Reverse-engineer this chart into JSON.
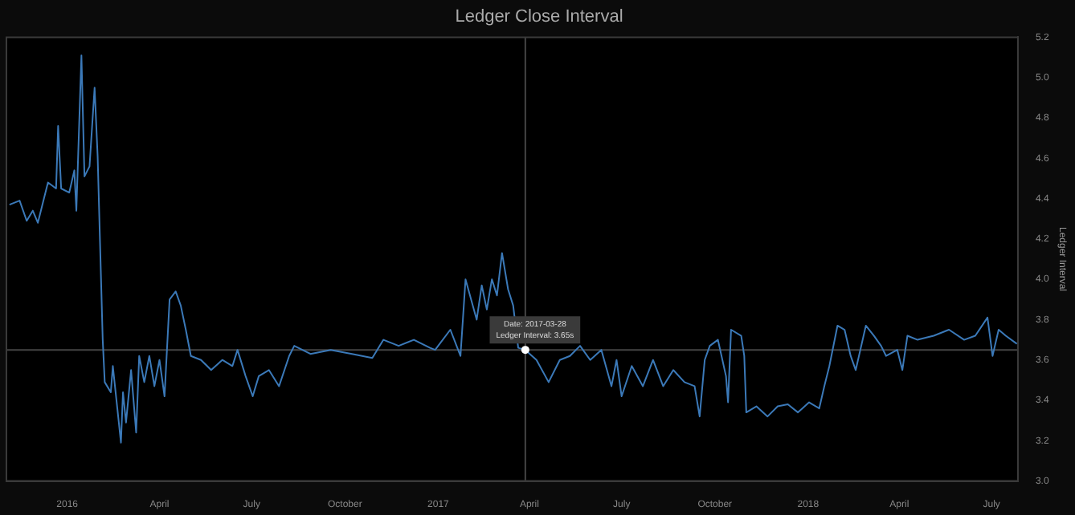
{
  "chart_data": {
    "type": "line",
    "title": "Ledger Close Interval",
    "ylabel": "Ledger Interval",
    "x": [
      "2015-11-05",
      "2015-11-15",
      "2015-11-22",
      "2015-11-28",
      "2015-12-03",
      "2015-12-13",
      "2015-12-21",
      "2015-12-23",
      "2015-12-26",
      "2016-01-03",
      "2016-01-08",
      "2016-01-10",
      "2016-01-15",
      "2016-01-18",
      "2016-01-23",
      "2016-01-28",
      "2016-01-31",
      "2016-02-05",
      "2016-02-07",
      "2016-02-13",
      "2016-02-15",
      "2016-02-23",
      "2016-02-25",
      "2016-02-28",
      "2016-03-04",
      "2016-03-09",
      "2016-03-12",
      "2016-03-17",
      "2016-03-22",
      "2016-03-27",
      "2016-04-01",
      "2016-04-06",
      "2016-04-11",
      "2016-04-17",
      "2016-04-22",
      "2016-04-27",
      "2016-05-02",
      "2016-05-12",
      "2016-05-22",
      "2016-06-02",
      "2016-06-12",
      "2016-06-17",
      "2016-06-25",
      "2016-07-02",
      "2016-07-08",
      "2016-07-18",
      "2016-07-28",
      "2016-08-07",
      "2016-08-12",
      "2016-08-28",
      "2016-09-17",
      "2016-10-08",
      "2016-10-28",
      "2016-11-08",
      "2016-11-23",
      "2016-12-08",
      "2016-12-24",
      "2016-12-29",
      "2017-01-13",
      "2017-01-23",
      "2017-01-28",
      "2017-02-08",
      "2017-02-13",
      "2017-02-18",
      "2017-02-23",
      "2017-02-28",
      "2017-03-05",
      "2017-03-11",
      "2017-03-16",
      "2017-03-21",
      "2017-03-28",
      "2017-04-08",
      "2017-04-20",
      "2017-05-01",
      "2017-05-11",
      "2017-05-21",
      "2017-05-31",
      "2017-06-11",
      "2017-06-21",
      "2017-06-26",
      "2017-07-01",
      "2017-07-11",
      "2017-07-22",
      "2017-08-01",
      "2017-08-11",
      "2017-08-21",
      "2017-09-01",
      "2017-09-11",
      "2017-09-16",
      "2017-09-21",
      "2017-09-26",
      "2017-10-04",
      "2017-10-12",
      "2017-10-14",
      "2017-10-17",
      "2017-10-27",
      "2017-10-30",
      "2017-11-01",
      "2017-11-11",
      "2017-11-22",
      "2017-12-02",
      "2017-12-12",
      "2017-12-22",
      "2018-01-02",
      "2018-01-12",
      "2018-01-17",
      "2018-01-22",
      "2018-01-30",
      "2018-02-06",
      "2018-02-12",
      "2018-02-17",
      "2018-02-27",
      "2018-03-07",
      "2018-03-14",
      "2018-03-19",
      "2018-03-30",
      "2018-04-04",
      "2018-04-09",
      "2018-04-19",
      "2018-05-05",
      "2018-05-20",
      "2018-06-04",
      "2018-06-15",
      "2018-06-27",
      "2018-07-02",
      "2018-07-08",
      "2018-07-15",
      "2018-07-26"
    ],
    "series": [
      {
        "color": "#3b79b8",
        "values": [
          4.37,
          4.39,
          4.29,
          4.34,
          4.28,
          4.48,
          4.45,
          4.76,
          4.45,
          4.43,
          4.54,
          4.34,
          5.11,
          4.51,
          4.56,
          4.95,
          4.61,
          3.7,
          3.49,
          3.44,
          3.57,
          3.19,
          3.44,
          3.29,
          3.55,
          3.24,
          3.62,
          3.49,
          3.62,
          3.47,
          3.6,
          3.42,
          3.9,
          3.94,
          3.87,
          3.75,
          3.62,
          3.6,
          3.55,
          3.6,
          3.57,
          3.65,
          3.52,
          3.42,
          3.52,
          3.55,
          3.47,
          3.62,
          3.67,
          3.63,
          3.65,
          3.63,
          3.61,
          3.7,
          3.67,
          3.7,
          3.66,
          3.65,
          3.75,
          3.62,
          4.0,
          3.8,
          3.97,
          3.85,
          4.0,
          3.92,
          4.13,
          3.95,
          3.87,
          3.66,
          3.65,
          3.6,
          3.49,
          3.6,
          3.62,
          3.67,
          3.6,
          3.65,
          3.47,
          3.6,
          3.42,
          3.57,
          3.47,
          3.6,
          3.47,
          3.55,
          3.49,
          3.47,
          3.32,
          3.6,
          3.67,
          3.7,
          3.52,
          3.39,
          3.75,
          3.72,
          3.62,
          3.34,
          3.37,
          3.32,
          3.37,
          3.38,
          3.34,
          3.39,
          3.36,
          3.47,
          3.57,
          3.77,
          3.75,
          3.62,
          3.55,
          3.77,
          3.72,
          3.67,
          3.62,
          3.65,
          3.55,
          3.72,
          3.7,
          3.72,
          3.75,
          3.7,
          3.72,
          3.81,
          3.62,
          3.75,
          3.72,
          3.68
        ]
      }
    ],
    "xlim": [
      "2015-11-02",
      "2018-07-27"
    ],
    "xticks": [
      {
        "value": "2016-01-01",
        "label": "2016"
      },
      {
        "value": "2016-04-01",
        "label": "April"
      },
      {
        "value": "2016-07-01",
        "label": "July"
      },
      {
        "value": "2016-10-01",
        "label": "October"
      },
      {
        "value": "2017-01-01",
        "label": "2017"
      },
      {
        "value": "2017-04-01",
        "label": "April"
      },
      {
        "value": "2017-07-01",
        "label": "July"
      },
      {
        "value": "2017-10-01",
        "label": "October"
      },
      {
        "value": "2018-01-01",
        "label": "2018"
      },
      {
        "value": "2018-04-01",
        "label": "April"
      },
      {
        "value": "2018-07-01",
        "label": "July"
      }
    ],
    "ylim": [
      3.0,
      5.2
    ],
    "yticks": [
      {
        "value": 3.0,
        "label": "3.0"
      },
      3.2,
      3.4,
      3.6,
      3.8,
      {
        "value": 4.0,
        "label": "4.0"
      },
      4.2,
      4.4,
      4.6,
      4.8,
      {
        "value": 5.0,
        "label": "5.0"
      },
      5.2
    ],
    "ref_lines": [
      {
        "axis": "x",
        "value": "2017-03-28",
        "color": "#444444"
      },
      {
        "axis": "y",
        "value": 3.65,
        "color": "#444444"
      }
    ],
    "annotations": [
      {
        "text": "Date: 2017-03-28\nLedger Interval: 3.65s",
        "x": "2017-03-28",
        "y": 3.65
      }
    ]
  }
}
